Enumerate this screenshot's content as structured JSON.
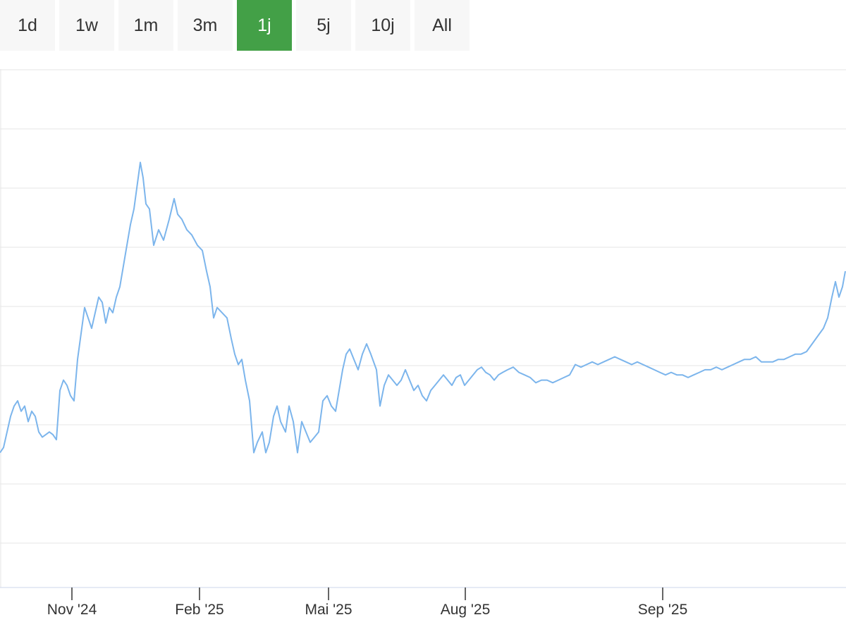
{
  "range_selector": {
    "buttons": [
      "1d",
      "1w",
      "1m",
      "3m",
      "1j",
      "5j",
      "10j",
      "All"
    ],
    "active": "1j",
    "active_color": "#43a047"
  },
  "chart_data": {
    "type": "line",
    "title": "",
    "xlabel": "",
    "ylabel": "",
    "x_tick_labels": [
      "Nov '24",
      "Feb '25",
      "Mai '25",
      "Aug '25",
      "Sep '25"
    ],
    "x_tick_dates": [
      "2024-11-01",
      "2025-02-01",
      "2025-05-01",
      "2025-08-01",
      "2025-09-01"
    ],
    "y_tick_labels": [],
    "grid": true,
    "line_color": "#7cb5ec",
    "series": [
      {
        "values": [
          [
            0,
            2.6
          ],
          [
            5,
            2.7
          ],
          [
            10,
            3.0
          ],
          [
            15,
            3.3
          ],
          [
            20,
            3.5
          ],
          [
            25,
            3.6
          ],
          [
            30,
            3.4
          ],
          [
            35,
            3.5
          ],
          [
            40,
            3.2
          ],
          [
            45,
            3.4
          ],
          [
            50,
            3.3
          ],
          [
            55,
            3.0
          ],
          [
            60,
            2.9
          ],
          [
            65,
            2.95
          ],
          [
            70,
            3.0
          ],
          [
            75,
            2.95
          ],
          [
            80,
            2.85
          ],
          [
            85,
            3.8
          ],
          [
            90,
            4.0
          ],
          [
            95,
            3.9
          ],
          [
            100,
            3.7
          ],
          [
            105,
            3.6
          ],
          [
            110,
            4.4
          ],
          [
            115,
            4.9
          ],
          [
            120,
            5.4
          ],
          [
            125,
            5.2
          ],
          [
            130,
            5.0
          ],
          [
            135,
            5.3
          ],
          [
            140,
            5.6
          ],
          [
            145,
            5.5
          ],
          [
            150,
            5.1
          ],
          [
            155,
            5.4
          ],
          [
            160,
            5.3
          ],
          [
            165,
            5.6
          ],
          [
            170,
            5.8
          ],
          [
            175,
            6.2
          ],
          [
            180,
            6.6
          ],
          [
            185,
            7.0
          ],
          [
            190,
            7.3
          ],
          [
            195,
            7.8
          ],
          [
            199,
            8.2
          ],
          [
            203,
            7.9
          ],
          [
            207,
            7.4
          ],
          [
            212,
            7.3
          ],
          [
            218,
            6.6
          ],
          [
            225,
            6.9
          ],
          [
            232,
            6.7
          ],
          [
            240,
            7.1
          ],
          [
            247,
            7.5
          ],
          [
            252,
            7.2
          ],
          [
            258,
            7.1
          ],
          [
            265,
            6.9
          ],
          [
            272,
            6.8
          ],
          [
            280,
            6.6
          ],
          [
            287,
            6.5
          ],
          [
            293,
            6.1
          ],
          [
            298,
            5.8
          ],
          [
            303,
            5.2
          ],
          [
            308,
            5.4
          ],
          [
            315,
            5.3
          ],
          [
            322,
            5.2
          ],
          [
            328,
            4.8
          ],
          [
            333,
            4.5
          ],
          [
            338,
            4.3
          ],
          [
            343,
            4.4
          ],
          [
            348,
            4.0
          ],
          [
            354,
            3.6
          ],
          [
            360,
            2.6
          ],
          [
            365,
            2.8
          ],
          [
            372,
            3.0
          ],
          [
            377,
            2.6
          ],
          [
            382,
            2.8
          ],
          [
            388,
            3.3
          ],
          [
            393,
            3.5
          ],
          [
            398,
            3.2
          ],
          [
            405,
            3.0
          ],
          [
            410,
            3.5
          ],
          [
            416,
            3.2
          ],
          [
            422,
            2.6
          ],
          [
            428,
            3.2
          ],
          [
            434,
            3.0
          ],
          [
            440,
            2.8
          ],
          [
            446,
            2.9
          ],
          [
            452,
            3.0
          ],
          [
            458,
            3.6
          ],
          [
            464,
            3.7
          ],
          [
            470,
            3.5
          ],
          [
            476,
            3.4
          ],
          [
            481,
            3.8
          ],
          [
            486,
            4.2
          ],
          [
            491,
            4.5
          ],
          [
            496,
            4.6
          ],
          [
            502,
            4.4
          ],
          [
            508,
            4.2
          ],
          [
            514,
            4.5
          ],
          [
            520,
            4.7
          ],
          [
            526,
            4.5
          ],
          [
            534,
            4.2
          ],
          [
            539,
            3.5
          ],
          [
            545,
            3.9
          ],
          [
            551,
            4.1
          ],
          [
            557,
            4.0
          ],
          [
            563,
            3.9
          ],
          [
            569,
            4.0
          ],
          [
            575,
            4.2
          ],
          [
            581,
            4.0
          ],
          [
            587,
            3.8
          ],
          [
            593,
            3.9
          ],
          [
            599,
            3.7
          ],
          [
            605,
            3.6
          ],
          [
            611,
            3.8
          ],
          [
            617,
            3.9
          ],
          [
            623,
            4.0
          ],
          [
            629,
            4.1
          ],
          [
            635,
            4.0
          ],
          [
            641,
            3.9
          ],
          [
            647,
            4.05
          ],
          [
            653,
            4.1
          ],
          [
            659,
            3.9
          ],
          [
            665,
            4.0
          ],
          [
            671,
            4.1
          ],
          [
            677,
            4.2
          ],
          [
            683,
            4.25
          ],
          [
            689,
            4.15
          ],
          [
            695,
            4.1
          ],
          [
            701,
            4.0
          ],
          [
            707,
            4.1
          ],
          [
            713,
            4.15
          ],
          [
            720,
            4.2
          ],
          [
            728,
            4.25
          ],
          [
            736,
            4.15
          ],
          [
            744,
            4.1
          ],
          [
            752,
            4.05
          ],
          [
            760,
            3.95
          ],
          [
            768,
            4.0
          ],
          [
            776,
            4.0
          ],
          [
            784,
            3.95
          ],
          [
            792,
            4.0
          ],
          [
            800,
            4.05
          ],
          [
            808,
            4.1
          ],
          [
            816,
            4.3
          ],
          [
            824,
            4.25
          ],
          [
            832,
            4.3
          ],
          [
            840,
            4.35
          ],
          [
            848,
            4.3
          ],
          [
            856,
            4.35
          ],
          [
            864,
            4.4
          ],
          [
            872,
            4.45
          ],
          [
            880,
            4.4
          ],
          [
            888,
            4.35
          ],
          [
            896,
            4.3
          ],
          [
            904,
            4.35
          ],
          [
            912,
            4.3
          ],
          [
            920,
            4.25
          ],
          [
            928,
            4.2
          ],
          [
            936,
            4.15
          ],
          [
            944,
            4.1
          ],
          [
            952,
            4.15
          ],
          [
            960,
            4.1
          ],
          [
            968,
            4.1
          ],
          [
            976,
            4.05
          ],
          [
            984,
            4.1
          ],
          [
            992,
            4.15
          ],
          [
            1000,
            4.2
          ],
          [
            1008,
            4.2
          ],
          [
            1016,
            4.25
          ],
          [
            1024,
            4.2
          ],
          [
            1032,
            4.25
          ],
          [
            1040,
            4.3
          ],
          [
            1048,
            4.35
          ],
          [
            1056,
            4.4
          ],
          [
            1064,
            4.4
          ],
          [
            1072,
            4.45
          ],
          [
            1080,
            4.35
          ],
          [
            1088,
            4.35
          ],
          [
            1096,
            4.35
          ],
          [
            1104,
            4.4
          ],
          [
            1112,
            4.4
          ],
          [
            1120,
            4.45
          ],
          [
            1128,
            4.5
          ],
          [
            1136,
            4.5
          ],
          [
            1144,
            4.55
          ],
          [
            1152,
            4.7
          ],
          [
            1160,
            4.85
          ],
          [
            1168,
            5.0
          ],
          [
            1174,
            5.2
          ],
          [
            1180,
            5.6
          ],
          [
            1185,
            5.9
          ],
          [
            1190,
            5.6
          ],
          [
            1195,
            5.8
          ],
          [
            1199,
            6.1
          ]
        ]
      }
    ]
  }
}
